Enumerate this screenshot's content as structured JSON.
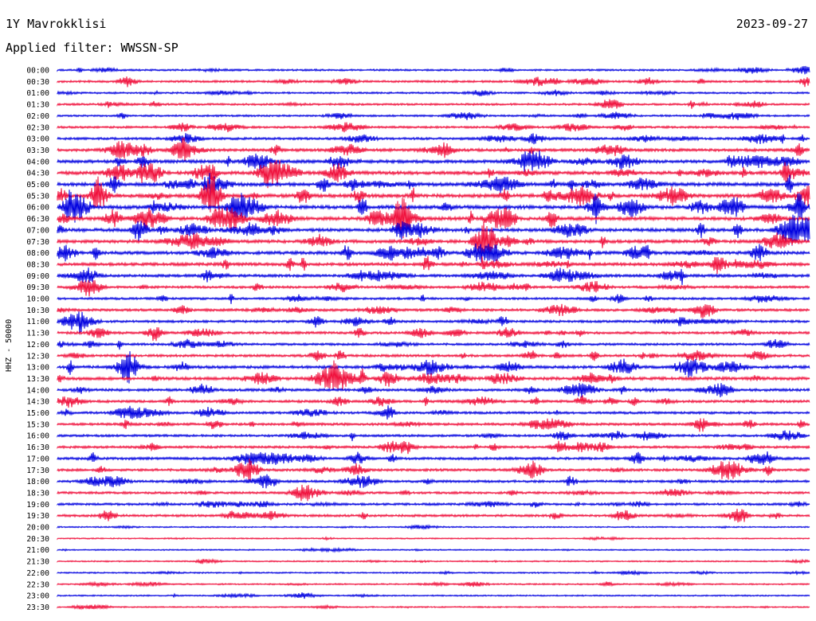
{
  "header": {
    "station": "1Y Mavrokklisi",
    "date": "2023-09-27",
    "filter": "Applied filter: WWSSN-SP"
  },
  "chart_data": {
    "type": "line",
    "title": "1Y Mavrokklisi",
    "ylabel": "HHZ - 50000",
    "colors": [
      "#0000e0",
      "#f0103c"
    ],
    "row_labels": [
      "00:00",
      "00:30",
      "01:00",
      "01:30",
      "02:00",
      "02:30",
      "03:00",
      "03:30",
      "04:00",
      "04:30",
      "05:00",
      "05:30",
      "06:00",
      "06:30",
      "07:00",
      "07:30",
      "08:00",
      "08:30",
      "09:00",
      "09:30",
      "10:00",
      "10:30",
      "11:00",
      "11:30",
      "12:00",
      "12:30",
      "13:00",
      "13:30",
      "14:00",
      "14:30",
      "15:00",
      "15:30",
      "16:00",
      "16:30",
      "17:00",
      "17:30",
      "18:00",
      "18:30",
      "19:00",
      "19:30",
      "20:00",
      "20:30",
      "21:00",
      "21:30",
      "22:00",
      "22:30",
      "23:00",
      "23:30"
    ],
    "activity": [
      0.35,
      0.45,
      0.35,
      0.4,
      0.35,
      0.45,
      0.55,
      0.75,
      0.85,
      0.95,
      0.95,
      1.0,
      1.0,
      0.95,
      0.9,
      0.85,
      0.85,
      0.8,
      0.7,
      0.55,
      0.5,
      0.6,
      0.55,
      0.6,
      0.5,
      0.6,
      0.75,
      0.8,
      0.65,
      0.6,
      0.55,
      0.6,
      0.5,
      0.55,
      0.65,
      0.6,
      0.55,
      0.5,
      0.5,
      0.55,
      0.12,
      0.1,
      0.12,
      0.14,
      0.18,
      0.2,
      0.16,
      0.14
    ]
  }
}
